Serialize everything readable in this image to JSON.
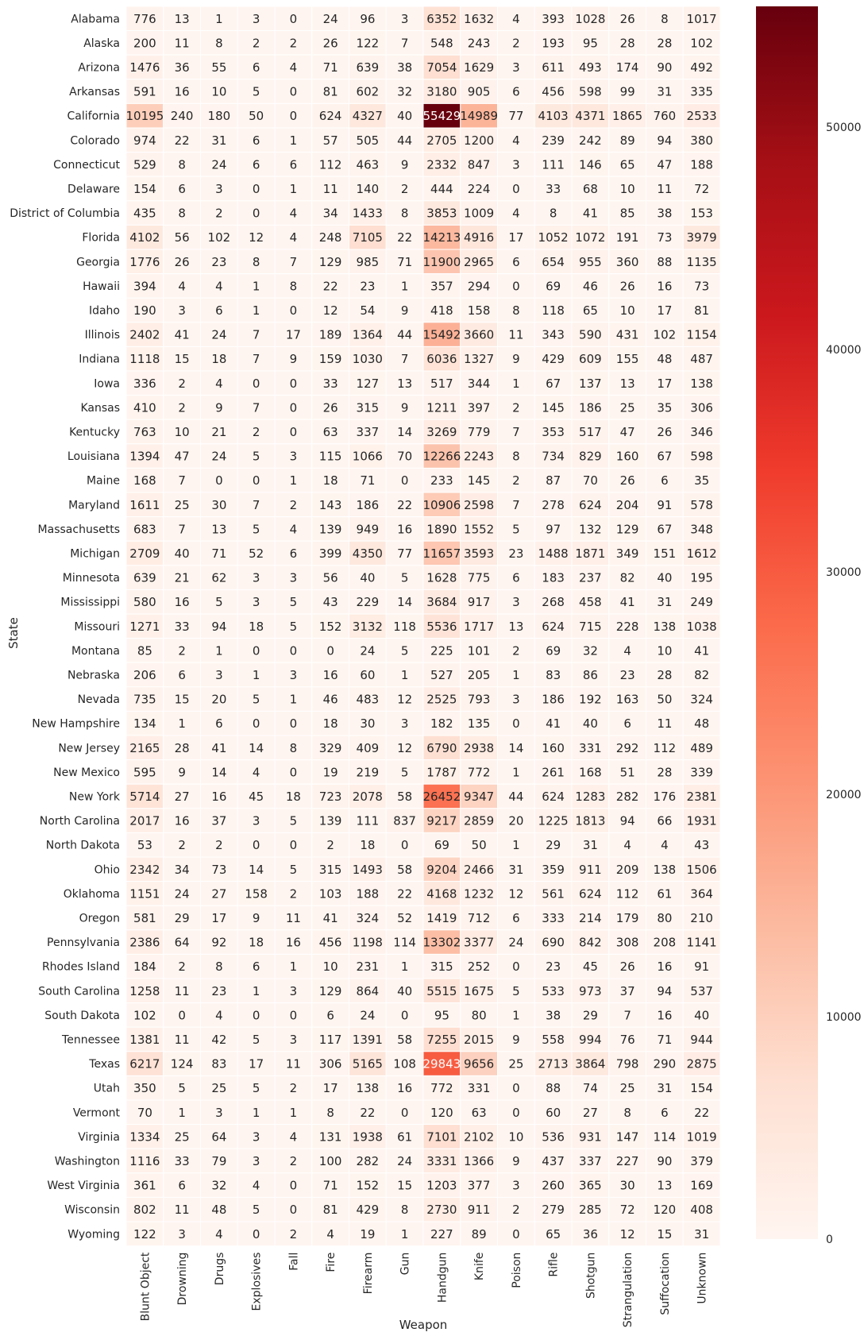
{
  "chart_data": {
    "type": "heatmap",
    "xlabel": "Weapon",
    "ylabel": "State",
    "colormap": "Reds",
    "colors": {
      "low": "#fff5f0",
      "high": "#67000d"
    },
    "color_range": [
      0,
      55429
    ],
    "colorbar_ticks": [
      "0",
      "10000",
      "20000",
      "30000",
      "40000",
      "50000"
    ],
    "colorbar_tick_values": [
      0,
      10000,
      20000,
      30000,
      40000,
      50000
    ],
    "x_categories": [
      "Blunt Object",
      "Drowning",
      "Drugs",
      "Explosives",
      "Fall",
      "Fire",
      "Firearm",
      "Gun",
      "Handgun",
      "Knife",
      "Poison",
      "Rifle",
      "Shotgun",
      "Strangulation",
      "Suffocation",
      "Unknown"
    ],
    "y_categories": [
      "Alabama",
      "Alaska",
      "Arizona",
      "Arkansas",
      "California",
      "Colorado",
      "Connecticut",
      "Delaware",
      "District of Columbia",
      "Florida",
      "Georgia",
      "Hawaii",
      "Idaho",
      "Illinois",
      "Indiana",
      "Iowa",
      "Kansas",
      "Kentucky",
      "Louisiana",
      "Maine",
      "Maryland",
      "Massachusetts",
      "Michigan",
      "Minnesota",
      "Mississippi",
      "Missouri",
      "Montana",
      "Nebraska",
      "Nevada",
      "New Hampshire",
      "New Jersey",
      "New Mexico",
      "New York",
      "North Carolina",
      "North Dakota",
      "Ohio",
      "Oklahoma",
      "Oregon",
      "Pennsylvania",
      "Rhodes Island",
      "South Carolina",
      "South Dakota",
      "Tennessee",
      "Texas",
      "Utah",
      "Vermont",
      "Virginia",
      "Washington",
      "West Virginia",
      "Wisconsin",
      "Wyoming"
    ],
    "values": [
      [
        776,
        13,
        1,
        3,
        0,
        24,
        96,
        3,
        6352,
        1632,
        4,
        393,
        1028,
        26,
        8,
        1017
      ],
      [
        200,
        11,
        8,
        2,
        2,
        26,
        122,
        7,
        548,
        243,
        2,
        193,
        95,
        28,
        28,
        102
      ],
      [
        1476,
        36,
        55,
        6,
        4,
        71,
        639,
        38,
        7054,
        1629,
        3,
        611,
        493,
        174,
        90,
        492
      ],
      [
        591,
        16,
        10,
        5,
        0,
        81,
        602,
        32,
        3180,
        905,
        6,
        456,
        598,
        99,
        31,
        335
      ],
      [
        10195,
        240,
        180,
        50,
        0,
        624,
        4327,
        40,
        55429,
        14989,
        77,
        4103,
        4371,
        1865,
        760,
        2533
      ],
      [
        974,
        22,
        31,
        6,
        1,
        57,
        505,
        44,
        2705,
        1200,
        4,
        239,
        242,
        89,
        94,
        380
      ],
      [
        529,
        8,
        24,
        6,
        6,
        112,
        463,
        9,
        2332,
        847,
        3,
        111,
        146,
        65,
        47,
        188
      ],
      [
        154,
        6,
        3,
        0,
        1,
        11,
        140,
        2,
        444,
        224,
        0,
        33,
        68,
        10,
        11,
        72
      ],
      [
        435,
        8,
        2,
        0,
        4,
        34,
        1433,
        8,
        3853,
        1009,
        4,
        8,
        41,
        85,
        38,
        153
      ],
      [
        4102,
        56,
        102,
        12,
        4,
        248,
        7105,
        22,
        14213,
        4916,
        17,
        1052,
        1072,
        191,
        73,
        3979
      ],
      [
        1776,
        26,
        23,
        8,
        7,
        129,
        985,
        71,
        11900,
        2965,
        6,
        654,
        955,
        360,
        88,
        1135
      ],
      [
        394,
        4,
        4,
        1,
        8,
        22,
        23,
        1,
        357,
        294,
        0,
        69,
        46,
        26,
        16,
        73
      ],
      [
        190,
        3,
        6,
        1,
        0,
        12,
        54,
        9,
        418,
        158,
        8,
        118,
        65,
        10,
        17,
        81
      ],
      [
        2402,
        41,
        24,
        7,
        17,
        189,
        1364,
        44,
        15492,
        3660,
        11,
        343,
        590,
        431,
        102,
        1154
      ],
      [
        1118,
        15,
        18,
        7,
        9,
        159,
        1030,
        7,
        6036,
        1327,
        9,
        429,
        609,
        155,
        48,
        487
      ],
      [
        336,
        2,
        4,
        0,
        0,
        33,
        127,
        13,
        517,
        344,
        1,
        67,
        137,
        13,
        17,
        138
      ],
      [
        410,
        2,
        9,
        7,
        0,
        26,
        315,
        9,
        1211,
        397,
        2,
        145,
        186,
        25,
        35,
        306
      ],
      [
        763,
        10,
        21,
        2,
        0,
        63,
        337,
        14,
        3269,
        779,
        7,
        353,
        517,
        47,
        26,
        346
      ],
      [
        1394,
        47,
        24,
        5,
        3,
        115,
        1066,
        70,
        12266,
        2243,
        8,
        734,
        829,
        160,
        67,
        598
      ],
      [
        168,
        7,
        0,
        0,
        1,
        18,
        71,
        0,
        233,
        145,
        2,
        87,
        70,
        26,
        6,
        35
      ],
      [
        1611,
        25,
        30,
        7,
        2,
        143,
        186,
        22,
        10906,
        2598,
        7,
        278,
        624,
        204,
        91,
        578
      ],
      [
        683,
        7,
        13,
        5,
        4,
        139,
        949,
        16,
        1890,
        1552,
        5,
        97,
        132,
        129,
        67,
        348
      ],
      [
        2709,
        40,
        71,
        52,
        6,
        399,
        4350,
        77,
        11657,
        3593,
        23,
        1488,
        1871,
        349,
        151,
        1612
      ],
      [
        639,
        21,
        62,
        3,
        3,
        56,
        40,
        5,
        1628,
        775,
        6,
        183,
        237,
        82,
        40,
        195
      ],
      [
        580,
        16,
        5,
        3,
        5,
        43,
        229,
        14,
        3684,
        917,
        3,
        268,
        458,
        41,
        31,
        249
      ],
      [
        1271,
        33,
        94,
        18,
        5,
        152,
        3132,
        118,
        5536,
        1717,
        13,
        624,
        715,
        228,
        138,
        1038
      ],
      [
        85,
        2,
        1,
        0,
        0,
        0,
        24,
        5,
        225,
        101,
        2,
        69,
        32,
        4,
        10,
        41
      ],
      [
        206,
        6,
        3,
        1,
        3,
        16,
        60,
        1,
        527,
        205,
        1,
        83,
        86,
        23,
        28,
        82
      ],
      [
        735,
        15,
        20,
        5,
        1,
        46,
        483,
        12,
        2525,
        793,
        3,
        186,
        192,
        163,
        50,
        324
      ],
      [
        134,
        1,
        6,
        0,
        0,
        18,
        30,
        3,
        182,
        135,
        0,
        41,
        40,
        6,
        11,
        48
      ],
      [
        2165,
        28,
        41,
        14,
        8,
        329,
        409,
        12,
        6790,
        2938,
        14,
        160,
        331,
        292,
        112,
        489
      ],
      [
        595,
        9,
        14,
        4,
        0,
        19,
        219,
        5,
        1787,
        772,
        1,
        261,
        168,
        51,
        28,
        339
      ],
      [
        5714,
        27,
        16,
        45,
        18,
        723,
        2078,
        58,
        26452,
        9347,
        44,
        624,
        1283,
        282,
        176,
        2381
      ],
      [
        2017,
        16,
        37,
        3,
        5,
        139,
        111,
        837,
        9217,
        2859,
        20,
        1225,
        1813,
        94,
        66,
        1931
      ],
      [
        53,
        2,
        2,
        0,
        0,
        2,
        18,
        0,
        69,
        50,
        1,
        29,
        31,
        4,
        4,
        43
      ],
      [
        2342,
        34,
        73,
        14,
        5,
        315,
        1493,
        58,
        9204,
        2466,
        31,
        359,
        911,
        209,
        138,
        1506
      ],
      [
        1151,
        24,
        27,
        158,
        2,
        103,
        188,
        22,
        4168,
        1232,
        12,
        561,
        624,
        112,
        61,
        364
      ],
      [
        581,
        29,
        17,
        9,
        11,
        41,
        324,
        52,
        1419,
        712,
        6,
        333,
        214,
        179,
        80,
        210
      ],
      [
        2386,
        64,
        92,
        18,
        16,
        456,
        1198,
        114,
        13302,
        3377,
        24,
        690,
        842,
        308,
        208,
        1141
      ],
      [
        184,
        2,
        8,
        6,
        1,
        10,
        231,
        1,
        315,
        252,
        0,
        23,
        45,
        26,
        16,
        91
      ],
      [
        1258,
        11,
        23,
        1,
        3,
        129,
        864,
        40,
        5515,
        1675,
        5,
        533,
        973,
        37,
        94,
        537
      ],
      [
        102,
        0,
        4,
        0,
        0,
        6,
        24,
        0,
        95,
        80,
        1,
        38,
        29,
        7,
        16,
        40
      ],
      [
        1381,
        11,
        42,
        5,
        3,
        117,
        1391,
        58,
        7255,
        2015,
        9,
        558,
        994,
        76,
        71,
        944
      ],
      [
        6217,
        124,
        83,
        17,
        11,
        306,
        5165,
        108,
        29843,
        9656,
        25,
        2713,
        3864,
        798,
        290,
        2875
      ],
      [
        350,
        5,
        25,
        5,
        2,
        17,
        138,
        16,
        772,
        331,
        0,
        88,
        74,
        25,
        31,
        154
      ],
      [
        70,
        1,
        3,
        1,
        1,
        8,
        22,
        0,
        120,
        63,
        0,
        60,
        27,
        8,
        6,
        22
      ],
      [
        1334,
        25,
        64,
        3,
        4,
        131,
        1938,
        61,
        7101,
        2102,
        10,
        536,
        931,
        147,
        114,
        1019
      ],
      [
        1116,
        33,
        79,
        3,
        2,
        100,
        282,
        24,
        3331,
        1366,
        9,
        437,
        337,
        227,
        90,
        379
      ],
      [
        361,
        6,
        32,
        4,
        0,
        71,
        152,
        15,
        1203,
        377,
        3,
        260,
        365,
        30,
        13,
        169
      ],
      [
        802,
        11,
        48,
        5,
        0,
        81,
        429,
        8,
        2730,
        911,
        2,
        279,
        285,
        72,
        120,
        408
      ],
      [
        122,
        3,
        4,
        0,
        2,
        4,
        19,
        1,
        227,
        89,
        0,
        65,
        36,
        12,
        15,
        31
      ]
    ]
  }
}
